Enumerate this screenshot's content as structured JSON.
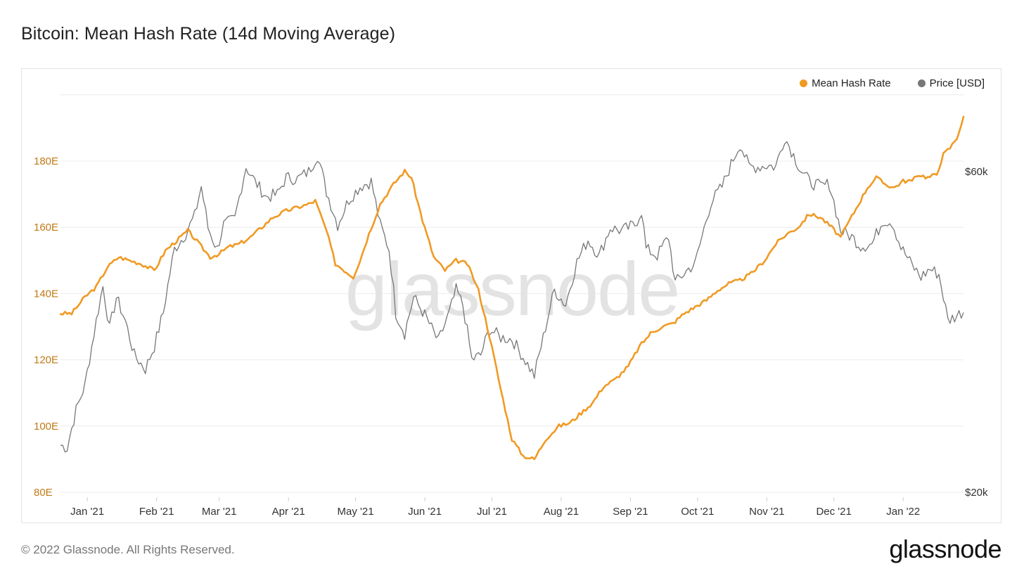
{
  "title": "Bitcoin: Mean Hash Rate (14d Moving Average)",
  "footer": "© 2022 Glassnode. All Rights Reserved.",
  "logo": "glassnode",
  "watermark": "glassnode",
  "colors": {
    "hash": "#f09a24",
    "price": "#777777",
    "hash_axis": "#c07a15",
    "grid": "#ececec"
  },
  "chart_data": {
    "type": "line",
    "x_ticks": [
      "Jan '21",
      "Feb '21",
      "Mar '21",
      "Apr '21",
      "May '21",
      "Jun '21",
      "Jul '21",
      "Aug '21",
      "Sep '21",
      "Oct '21",
      "Nov '21",
      "Dec '21",
      "Jan '22"
    ],
    "x_range": [
      "2020-12-20",
      "2022-01-28"
    ],
    "legend": [
      "Mean Hash Rate",
      "Price [USD]"
    ],
    "legend_position": "top-right",
    "grid": true,
    "y_left": {
      "label": "",
      "ticks": [
        "80E",
        "100E",
        "120E",
        "140E",
        "160E",
        "180E"
      ],
      "range": [
        80,
        180
      ],
      "unit": "EH/s"
    },
    "y_right": {
      "label": "",
      "ticks": [
        "$20k",
        "$60k"
      ],
      "scale": "log",
      "range": [
        20000,
        60000
      ]
    },
    "series": [
      {
        "name": "Mean Hash Rate",
        "axis": "left",
        "points": [
          [
            "2020-12-20",
            134
          ],
          [
            "2020-12-25",
            134
          ],
          [
            "2020-12-31",
            139
          ],
          [
            "2021-01-05",
            142
          ],
          [
            "2021-01-10",
            148
          ],
          [
            "2021-01-15",
            151
          ],
          [
            "2021-01-20",
            150
          ],
          [
            "2021-01-25",
            149
          ],
          [
            "2021-01-31",
            147
          ],
          [
            "2021-02-05",
            153
          ],
          [
            "2021-02-10",
            156
          ],
          [
            "2021-02-15",
            159
          ],
          [
            "2021-02-20",
            155
          ],
          [
            "2021-02-25",
            151
          ],
          [
            "2021-03-01",
            152
          ],
          [
            "2021-03-05",
            154
          ],
          [
            "2021-03-10",
            155
          ],
          [
            "2021-03-15",
            157
          ],
          [
            "2021-03-20",
            160
          ],
          [
            "2021-03-25",
            163
          ],
          [
            "2021-03-31",
            165
          ],
          [
            "2021-04-05",
            166
          ],
          [
            "2021-04-10",
            167
          ],
          [
            "2021-04-13",
            168
          ],
          [
            "2021-04-18",
            159
          ],
          [
            "2021-04-22",
            149
          ],
          [
            "2021-04-28",
            146
          ],
          [
            "2021-04-30",
            145
          ],
          [
            "2021-05-03",
            150
          ],
          [
            "2021-05-07",
            158
          ],
          [
            "2021-05-12",
            167
          ],
          [
            "2021-05-18",
            173
          ],
          [
            "2021-05-23",
            177
          ],
          [
            "2021-05-26",
            175
          ],
          [
            "2021-05-31",
            162
          ],
          [
            "2021-06-05",
            151
          ],
          [
            "2021-06-10",
            147
          ],
          [
            "2021-06-15",
            150
          ],
          [
            "2021-06-20",
            149
          ],
          [
            "2021-06-25",
            141
          ],
          [
            "2021-06-30",
            127
          ],
          [
            "2021-07-05",
            111
          ],
          [
            "2021-07-10",
            96
          ],
          [
            "2021-07-15",
            91
          ],
          [
            "2021-07-20",
            90
          ],
          [
            "2021-07-25",
            96
          ],
          [
            "2021-07-31",
            100
          ],
          [
            "2021-08-05",
            101
          ],
          [
            "2021-08-10",
            104
          ],
          [
            "2021-08-15",
            107
          ],
          [
            "2021-08-20",
            112
          ],
          [
            "2021-08-25",
            114
          ],
          [
            "2021-08-31",
            118
          ],
          [
            "2021-09-05",
            124
          ],
          [
            "2021-09-10",
            128
          ],
          [
            "2021-09-15",
            130
          ],
          [
            "2021-09-20",
            131
          ],
          [
            "2021-09-25",
            134
          ],
          [
            "2021-09-30",
            136
          ],
          [
            "2021-10-05",
            138
          ],
          [
            "2021-10-10",
            141
          ],
          [
            "2021-10-15",
            143
          ],
          [
            "2021-10-20",
            144
          ],
          [
            "2021-10-25",
            146
          ],
          [
            "2021-10-31",
            150
          ],
          [
            "2021-11-05",
            155
          ],
          [
            "2021-11-10",
            158
          ],
          [
            "2021-11-15",
            160
          ],
          [
            "2021-11-20",
            164
          ],
          [
            "2021-11-25",
            163
          ],
          [
            "2021-11-30",
            160
          ],
          [
            "2021-12-04",
            157
          ],
          [
            "2021-12-08",
            162
          ],
          [
            "2021-12-12",
            167
          ],
          [
            "2021-12-16",
            172
          ],
          [
            "2021-12-20",
            175
          ],
          [
            "2021-12-24",
            173
          ],
          [
            "2021-12-28",
            172
          ],
          [
            "2022-01-01",
            174
          ],
          [
            "2022-01-05",
            174
          ],
          [
            "2022-01-08",
            176
          ],
          [
            "2022-01-12",
            175
          ],
          [
            "2022-01-16",
            176
          ],
          [
            "2022-01-19",
            182
          ],
          [
            "2022-01-22",
            184
          ],
          [
            "2022-01-25",
            187
          ],
          [
            "2022-01-28",
            193
          ]
        ]
      },
      {
        "name": "Price [USD]",
        "axis": "right",
        "points": [
          [
            "2020-12-20",
            23500
          ],
          [
            "2020-12-23",
            23300
          ],
          [
            "2020-12-27",
            26500
          ],
          [
            "2020-12-31",
            28900
          ],
          [
            "2021-01-03",
            33000
          ],
          [
            "2021-01-08",
            40500
          ],
          [
            "2021-01-11",
            35000
          ],
          [
            "2021-01-14",
            39000
          ],
          [
            "2021-01-18",
            36000
          ],
          [
            "2021-01-22",
            32000
          ],
          [
            "2021-01-27",
            30500
          ],
          [
            "2021-01-31",
            33000
          ],
          [
            "2021-02-04",
            37000
          ],
          [
            "2021-02-09",
            46000
          ],
          [
            "2021-02-14",
            48500
          ],
          [
            "2021-02-18",
            51500
          ],
          [
            "2021-02-21",
            57000
          ],
          [
            "2021-02-24",
            49500
          ],
          [
            "2021-02-28",
            46000
          ],
          [
            "2021-03-03",
            50000
          ],
          [
            "2021-03-08",
            51000
          ],
          [
            "2021-03-13",
            61000
          ],
          [
            "2021-03-17",
            58000
          ],
          [
            "2021-03-22",
            55000
          ],
          [
            "2021-03-27",
            55500
          ],
          [
            "2021-03-31",
            58800
          ],
          [
            "2021-04-05",
            58500
          ],
          [
            "2021-04-10",
            60000
          ],
          [
            "2021-04-14",
            63500
          ],
          [
            "2021-04-18",
            56000
          ],
          [
            "2021-04-23",
            50000
          ],
          [
            "2021-04-28",
            54500
          ],
          [
            "2021-05-03",
            57000
          ],
          [
            "2021-05-08",
            58000
          ],
          [
            "2021-05-12",
            50000
          ],
          [
            "2021-05-16",
            46000
          ],
          [
            "2021-05-19",
            37000
          ],
          [
            "2021-05-23",
            34500
          ],
          [
            "2021-05-27",
            39000
          ],
          [
            "2021-06-01",
            36700
          ],
          [
            "2021-06-07",
            33500
          ],
          [
            "2021-06-12",
            37000
          ],
          [
            "2021-06-15",
            40000
          ],
          [
            "2021-06-18",
            38000
          ],
          [
            "2021-06-22",
            31500
          ],
          [
            "2021-06-26",
            32000
          ],
          [
            "2021-06-30",
            35000
          ],
          [
            "2021-07-05",
            34000
          ],
          [
            "2021-07-10",
            33800
          ],
          [
            "2021-07-15",
            31800
          ],
          [
            "2021-07-20",
            29800
          ],
          [
            "2021-07-24",
            34000
          ],
          [
            "2021-07-29",
            40000
          ],
          [
            "2021-08-03",
            38000
          ],
          [
            "2021-08-08",
            44000
          ],
          [
            "2021-08-13",
            47500
          ],
          [
            "2021-08-18",
            45000
          ],
          [
            "2021-08-23",
            49500
          ],
          [
            "2021-08-28",
            49000
          ],
          [
            "2021-09-03",
            50000
          ],
          [
            "2021-09-06",
            52500
          ],
          [
            "2021-09-08",
            46000
          ],
          [
            "2021-09-13",
            45000
          ],
          [
            "2021-09-18",
            48000
          ],
          [
            "2021-09-21",
            41000
          ],
          [
            "2021-09-27",
            43000
          ],
          [
            "2021-09-30",
            43800
          ],
          [
            "2021-10-03",
            48000
          ],
          [
            "2021-10-07",
            54000
          ],
          [
            "2021-10-12",
            57000
          ],
          [
            "2021-10-16",
            61500
          ],
          [
            "2021-10-20",
            66000
          ],
          [
            "2021-10-24",
            61000
          ],
          [
            "2021-10-28",
            61000
          ],
          [
            "2021-11-01",
            61300
          ],
          [
            "2021-11-05",
            61000
          ],
          [
            "2021-11-09",
            67500
          ],
          [
            "2021-11-12",
            64500
          ],
          [
            "2021-11-16",
            60500
          ],
          [
            "2021-11-20",
            58000
          ],
          [
            "2021-11-25",
            57000
          ],
          [
            "2021-11-29",
            57500
          ],
          [
            "2021-12-04",
            49000
          ],
          [
            "2021-12-09",
            48000
          ],
          [
            "2021-12-13",
            46500
          ],
          [
            "2021-12-18",
            46800
          ],
          [
            "2021-12-23",
            50800
          ],
          [
            "2021-12-27",
            50500
          ],
          [
            "2021-12-31",
            46300
          ],
          [
            "2022-01-05",
            43500
          ],
          [
            "2022-01-09",
            41800
          ],
          [
            "2022-01-13",
            43000
          ],
          [
            "2022-01-17",
            42200
          ],
          [
            "2022-01-21",
            36000
          ],
          [
            "2022-01-24",
            36500
          ],
          [
            "2022-01-28",
            37200
          ]
        ]
      }
    ]
  }
}
